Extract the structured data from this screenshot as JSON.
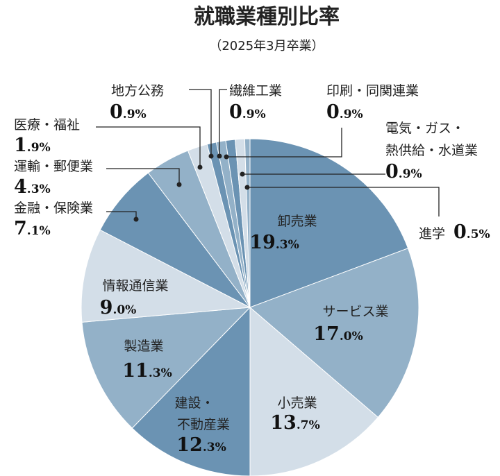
{
  "chart_data": {
    "type": "pie",
    "title": "就職業種別比率",
    "subtitle": "（2025年3月卒業）",
    "start_angle_deg": 0,
    "direction": "clockwise",
    "slices": [
      {
        "name": "卸売業",
        "value": 19.3,
        "label": "19.3%",
        "color": "#6b93b3"
      },
      {
        "name": "サービス業",
        "value": 17.0,
        "label": "17.0%",
        "color": "#93b1c8"
      },
      {
        "name": "小売業",
        "value": 13.7,
        "label": "13.7%",
        "color": "#d3dee8"
      },
      {
        "name": "建設・不動産業",
        "value": 12.3,
        "label": "12.3%",
        "color": "#6b93b3"
      },
      {
        "name": "製造業",
        "value": 11.3,
        "label": "11.3%",
        "color": "#93b1c8"
      },
      {
        "name": "情報通信業",
        "value": 9.0,
        "label": "9.0%",
        "color": "#d3dee8"
      },
      {
        "name": "金融・保険業",
        "value": 7.1,
        "label": "7.1%",
        "color": "#6b93b3"
      },
      {
        "name": "運輸・郵便業",
        "value": 4.3,
        "label": "4.3%",
        "color": "#93b1c8"
      },
      {
        "name": "医療・福祉",
        "value": 1.9,
        "label": "1.9%",
        "color": "#d3dee8"
      },
      {
        "name": "地方公務",
        "value": 0.9,
        "label": "0.9%",
        "color": "#6b93b3"
      },
      {
        "name": "繊維工業",
        "value": 0.9,
        "label": "0.9%",
        "color": "#93b1c8"
      },
      {
        "name": "印刷・同関連業",
        "value": 0.9,
        "label": "0.9%",
        "color": "#6b93b3"
      },
      {
        "name": "電気・ガス・熱供給・水道業",
        "value": 0.9,
        "label": "0.9%",
        "color": "#d3dee8"
      },
      {
        "name": "進学",
        "value": 0.5,
        "label": "0.5%",
        "color": "#93b1c8"
      }
    ]
  }
}
